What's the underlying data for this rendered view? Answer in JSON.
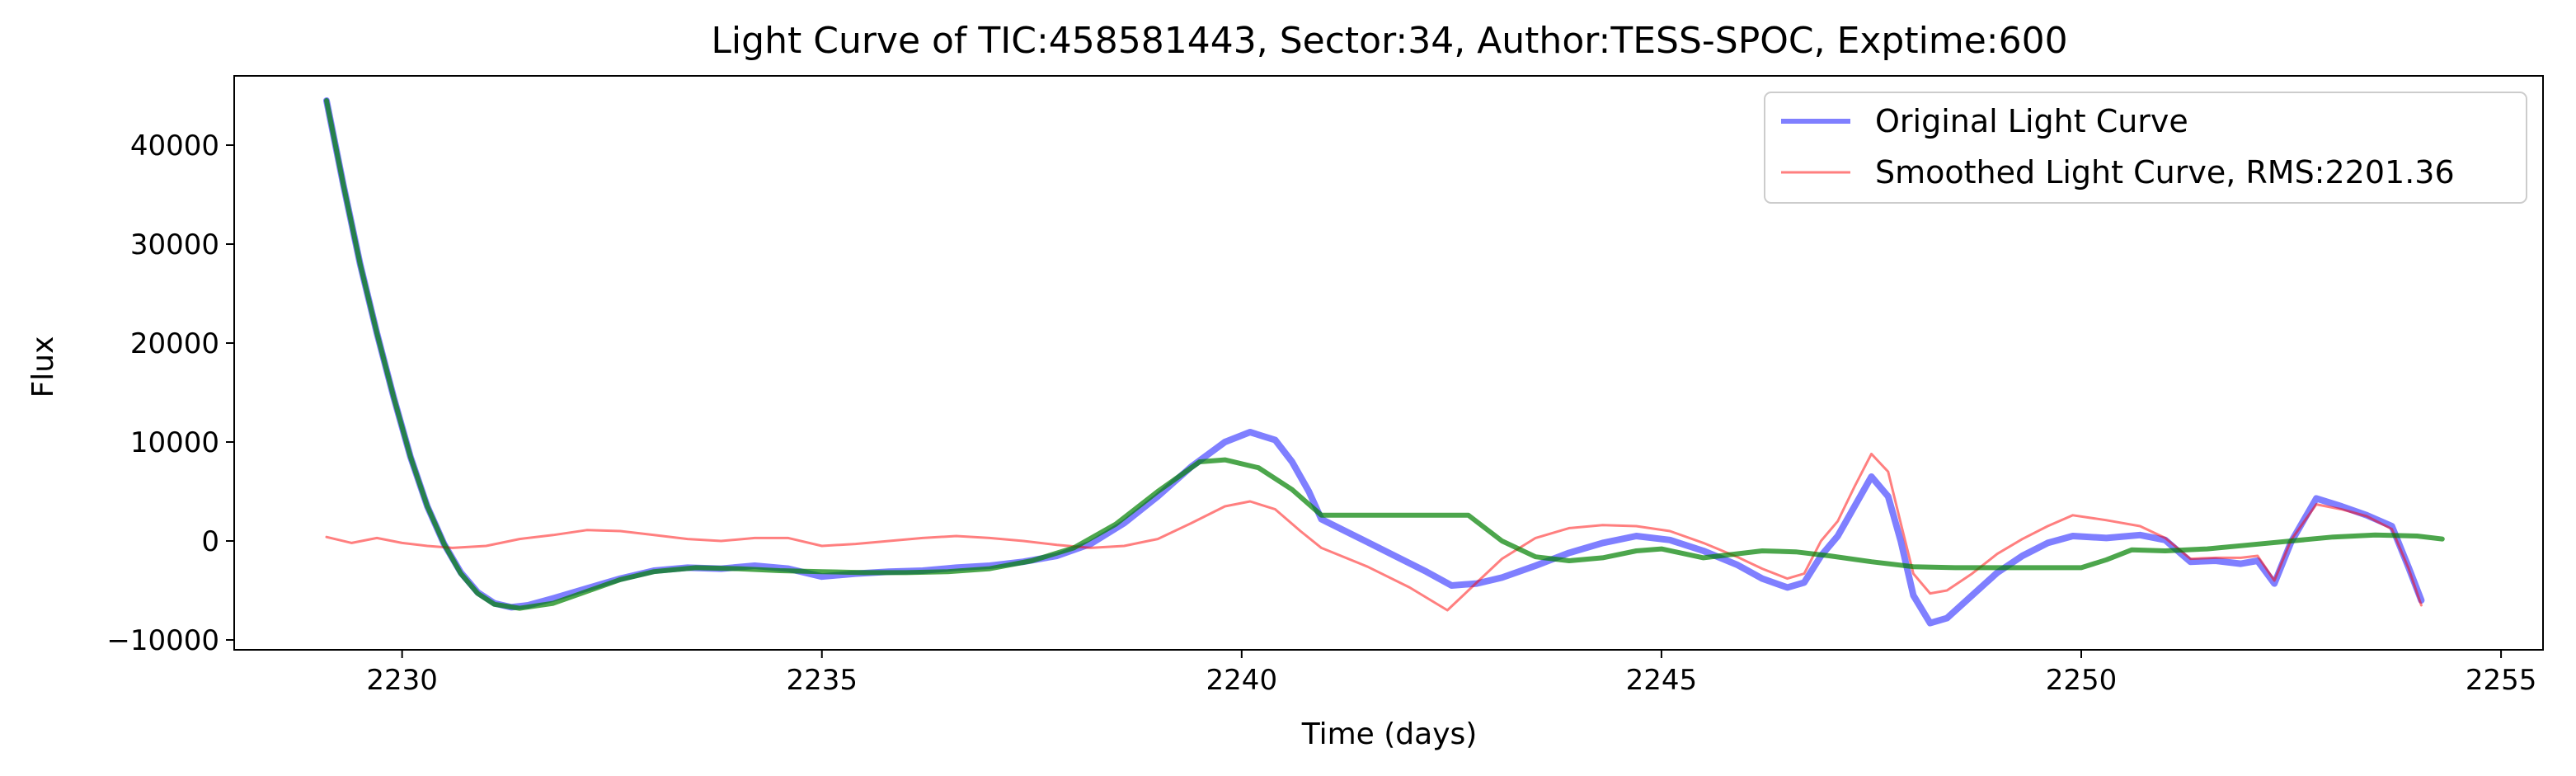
{
  "chart_data": {
    "type": "line",
    "title": "Light Curve of TIC:458581443, Sector:34, Author:TESS-SPOC, Exptime:600",
    "xlabel": "Time (days)",
    "ylabel": "Flux",
    "xlim": [
      2228.0,
      2255.5
    ],
    "ylim": [
      -11000,
      47000
    ],
    "xticks": [
      2230,
      2235,
      2240,
      2245,
      2250,
      2255
    ],
    "yticks": [
      -10000,
      0,
      10000,
      20000,
      30000,
      40000
    ],
    "xtick_labels": [
      "2230",
      "2235",
      "2240",
      "2245",
      "2250",
      "2255"
    ],
    "ytick_labels": [
      "−10000",
      "0",
      "10000",
      "20000",
      "30000",
      "40000"
    ],
    "grid": false,
    "legend_position": "top-right",
    "series": [
      {
        "name": "Original Light Curve",
        "color": "#0000ff",
        "points": [
          [
            2229.1,
            44500
          ],
          [
            2229.3,
            36000
          ],
          [
            2229.5,
            28000
          ],
          [
            2229.7,
            21000
          ],
          [
            2229.9,
            14500
          ],
          [
            2230.1,
            8500
          ],
          [
            2230.3,
            3500
          ],
          [
            2230.5,
            -300
          ],
          [
            2230.7,
            -3200
          ],
          [
            2230.9,
            -5200
          ],
          [
            2231.1,
            -6300
          ],
          [
            2231.3,
            -6700
          ],
          [
            2231.5,
            -6500
          ],
          [
            2231.8,
            -5800
          ],
          [
            2232.2,
            -4800
          ],
          [
            2232.6,
            -3800
          ],
          [
            2233.0,
            -3000
          ],
          [
            2233.4,
            -2700
          ],
          [
            2233.8,
            -2800
          ],
          [
            2234.2,
            -2500
          ],
          [
            2234.6,
            -2800
          ],
          [
            2235.0,
            -3600
          ],
          [
            2235.4,
            -3300
          ],
          [
            2235.8,
            -3100
          ],
          [
            2236.2,
            -3000
          ],
          [
            2236.6,
            -2700
          ],
          [
            2237.0,
            -2500
          ],
          [
            2237.4,
            -2100
          ],
          [
            2237.8,
            -1500
          ],
          [
            2238.2,
            -300
          ],
          [
            2238.6,
            1800
          ],
          [
            2239.0,
            4500
          ],
          [
            2239.4,
            7500
          ],
          [
            2239.8,
            10000
          ],
          [
            2240.1,
            11000
          ],
          [
            2240.4,
            10200
          ],
          [
            2240.6,
            8000
          ],
          [
            2240.8,
            5000
          ],
          [
            2240.95,
            2200
          ],
          [
            2241.4,
            300
          ],
          [
            2241.8,
            -1400
          ],
          [
            2242.2,
            -3100
          ],
          [
            2242.5,
            -4500
          ],
          [
            2242.8,
            -4300
          ],
          [
            2243.1,
            -3700
          ],
          [
            2243.5,
            -2500
          ],
          [
            2243.9,
            -1200
          ],
          [
            2244.3,
            -200
          ],
          [
            2244.7,
            500
          ],
          [
            2245.1,
            100
          ],
          [
            2245.5,
            -1000
          ],
          [
            2245.9,
            -2400
          ],
          [
            2246.2,
            -3800
          ],
          [
            2246.5,
            -4700
          ],
          [
            2246.7,
            -4200
          ],
          [
            2246.9,
            -1500
          ],
          [
            2247.1,
            500
          ],
          [
            2247.3,
            3500
          ],
          [
            2247.5,
            6500
          ],
          [
            2247.7,
            4500
          ],
          [
            2247.85,
            0
          ],
          [
            2248.0,
            -5500
          ],
          [
            2248.2,
            -8300
          ],
          [
            2248.4,
            -7800
          ],
          [
            2248.7,
            -5500
          ],
          [
            2249.0,
            -3200
          ],
          [
            2249.3,
            -1500
          ],
          [
            2249.6,
            -200
          ],
          [
            2249.9,
            500
          ],
          [
            2250.3,
            300
          ],
          [
            2250.7,
            600
          ],
          [
            2251.0,
            100
          ],
          [
            2251.3,
            -2100
          ],
          [
            2251.6,
            -2000
          ],
          [
            2251.9,
            -2300
          ],
          [
            2252.1,
            -2000
          ],
          [
            2252.3,
            -4300
          ],
          [
            2252.5,
            -100
          ],
          [
            2252.8,
            4300
          ],
          [
            2253.1,
            3500
          ],
          [
            2253.4,
            2600
          ],
          [
            2253.7,
            1500
          ],
          [
            2253.9,
            -2700
          ],
          [
            2254.05,
            -6000
          ]
        ]
      },
      {
        "name": "Smoothed Light Curve, RMS:2201.36",
        "color": "#ff0000",
        "points": [
          [
            2229.1,
            400
          ],
          [
            2229.4,
            -200
          ],
          [
            2229.7,
            300
          ],
          [
            2230.0,
            -200
          ],
          [
            2230.3,
            -500
          ],
          [
            2230.6,
            -700
          ],
          [
            2231.0,
            -500
          ],
          [
            2231.4,
            200
          ],
          [
            2231.8,
            600
          ],
          [
            2232.2,
            1100
          ],
          [
            2232.6,
            1000
          ],
          [
            2233.0,
            600
          ],
          [
            2233.4,
            200
          ],
          [
            2233.8,
            0
          ],
          [
            2234.2,
            300
          ],
          [
            2234.6,
            300
          ],
          [
            2235.0,
            -500
          ],
          [
            2235.4,
            -300
          ],
          [
            2235.8,
            0
          ],
          [
            2236.2,
            300
          ],
          [
            2236.6,
            500
          ],
          [
            2237.0,
            300
          ],
          [
            2237.4,
            0
          ],
          [
            2237.8,
            -400
          ],
          [
            2238.2,
            -700
          ],
          [
            2238.6,
            -500
          ],
          [
            2239.0,
            200
          ],
          [
            2239.4,
            1800
          ],
          [
            2239.8,
            3500
          ],
          [
            2240.1,
            4000
          ],
          [
            2240.4,
            3200
          ],
          [
            2240.7,
            1000
          ],
          [
            2240.95,
            -700
          ],
          [
            2241.5,
            -2600
          ],
          [
            2242.0,
            -4700
          ],
          [
            2242.45,
            -7000
          ],
          [
            2242.8,
            -4200
          ],
          [
            2243.1,
            -1800
          ],
          [
            2243.5,
            300
          ],
          [
            2243.9,
            1300
          ],
          [
            2244.3,
            1600
          ],
          [
            2244.7,
            1500
          ],
          [
            2245.1,
            1000
          ],
          [
            2245.5,
            -200
          ],
          [
            2245.9,
            -1600
          ],
          [
            2246.2,
            -2800
          ],
          [
            2246.5,
            -3800
          ],
          [
            2246.7,
            -3300
          ],
          [
            2246.9,
            0
          ],
          [
            2247.1,
            2000
          ],
          [
            2247.3,
            5500
          ],
          [
            2247.5,
            8800
          ],
          [
            2247.7,
            7000
          ],
          [
            2247.85,
            1800
          ],
          [
            2248.0,
            -3300
          ],
          [
            2248.2,
            -5300
          ],
          [
            2248.4,
            -5000
          ],
          [
            2248.7,
            -3300
          ],
          [
            2249.0,
            -1300
          ],
          [
            2249.3,
            200
          ],
          [
            2249.6,
            1500
          ],
          [
            2249.9,
            2600
          ],
          [
            2250.3,
            2100
          ],
          [
            2250.7,
            1500
          ],
          [
            2251.0,
            300
          ],
          [
            2251.3,
            -1800
          ],
          [
            2251.6,
            -1700
          ],
          [
            2251.9,
            -1700
          ],
          [
            2252.1,
            -1500
          ],
          [
            2252.3,
            -4000
          ],
          [
            2252.5,
            100
          ],
          [
            2252.8,
            3700
          ],
          [
            2253.1,
            3200
          ],
          [
            2253.4,
            2500
          ],
          [
            2253.7,
            1200
          ],
          [
            2253.9,
            -2800
          ],
          [
            2254.05,
            -6500
          ]
        ]
      },
      {
        "name": "",
        "color": "#008000",
        "points": [
          [
            2229.1,
            44500
          ],
          [
            2229.3,
            36000
          ],
          [
            2229.5,
            28000
          ],
          [
            2229.7,
            21000
          ],
          [
            2229.9,
            14500
          ],
          [
            2230.1,
            8500
          ],
          [
            2230.3,
            3500
          ],
          [
            2230.5,
            -300
          ],
          [
            2230.7,
            -3300
          ],
          [
            2230.9,
            -5300
          ],
          [
            2231.1,
            -6400
          ],
          [
            2231.4,
            -6800
          ],
          [
            2231.8,
            -6300
          ],
          [
            2232.2,
            -5100
          ],
          [
            2232.6,
            -3900
          ],
          [
            2233.0,
            -3100
          ],
          [
            2233.5,
            -2700
          ],
          [
            2234.0,
            -2800
          ],
          [
            2234.5,
            -3000
          ],
          [
            2235.0,
            -3100
          ],
          [
            2235.5,
            -3200
          ],
          [
            2236.0,
            -3200
          ],
          [
            2236.5,
            -3100
          ],
          [
            2237.0,
            -2800
          ],
          [
            2237.5,
            -2000
          ],
          [
            2238.0,
            -700
          ],
          [
            2238.5,
            1700
          ],
          [
            2239.0,
            5000
          ],
          [
            2239.5,
            8000
          ],
          [
            2239.8,
            8200
          ],
          [
            2240.2,
            7400
          ],
          [
            2240.6,
            5200
          ],
          [
            2240.95,
            2600
          ],
          [
            2242.0,
            2600
          ],
          [
            2242.7,
            2600
          ],
          [
            2243.1,
            0
          ],
          [
            2243.5,
            -1600
          ],
          [
            2243.9,
            -2000
          ],
          [
            2244.3,
            -1700
          ],
          [
            2244.7,
            -1000
          ],
          [
            2245.0,
            -800
          ],
          [
            2245.5,
            -1700
          ],
          [
            2245.9,
            -1300
          ],
          [
            2246.2,
            -1000
          ],
          [
            2246.6,
            -1100
          ],
          [
            2247.0,
            -1500
          ],
          [
            2247.5,
            -2100
          ],
          [
            2248.0,
            -2600
          ],
          [
            2248.5,
            -2700
          ],
          [
            2249.5,
            -2700
          ],
          [
            2250.0,
            -2700
          ],
          [
            2250.3,
            -1900
          ],
          [
            2250.6,
            -900
          ],
          [
            2251.0,
            -1000
          ],
          [
            2251.5,
            -800
          ],
          [
            2252.0,
            -400
          ],
          [
            2252.5,
            0
          ],
          [
            2253.0,
            400
          ],
          [
            2253.5,
            600
          ],
          [
            2254.0,
            500
          ],
          [
            2254.3,
            200
          ]
        ]
      }
    ]
  }
}
